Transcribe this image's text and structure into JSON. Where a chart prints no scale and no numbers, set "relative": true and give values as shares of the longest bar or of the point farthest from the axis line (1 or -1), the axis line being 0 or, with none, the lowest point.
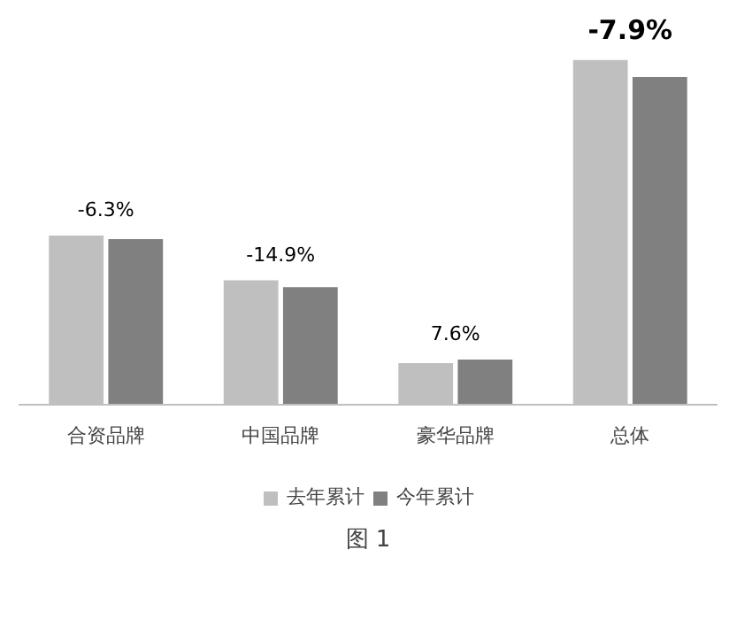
{
  "chart_data": {
    "type": "bar",
    "relative": true,
    "categories": [
      "合资品牌",
      "中国品牌",
      "豪华品牌",
      "总体"
    ],
    "series": [
      {
        "name": "去年累计",
        "color": "#bfbfbf",
        "values": [
          0.49,
          0.36,
          0.12,
          1
        ]
      },
      {
        "name": "今年累计",
        "color": "#808080",
        "values": [
          0.48,
          0.34,
          0.13,
          0.95
        ]
      }
    ],
    "annotations": [
      "-6.3%",
      "-14.9%",
      "7.6%",
      "-7.9%",
      "图 1"
    ],
    "legend": "bottom"
  }
}
